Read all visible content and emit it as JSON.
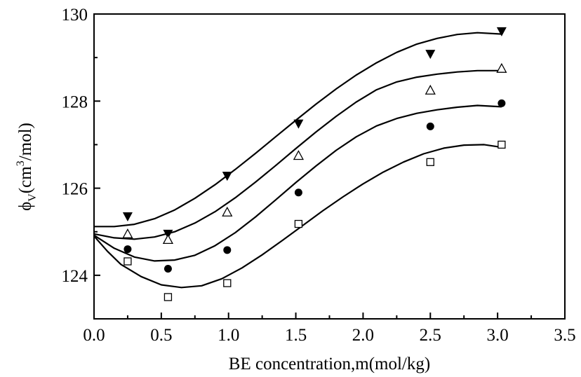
{
  "chart_data": {
    "type": "scatter",
    "xlabel": "BE concentration,m(mol/kg)",
    "ylabel": {
      "symbol": "ϕ",
      "subscript": "V",
      "unit_prefix": "(cm",
      "superscript": "3",
      "unit_suffix": "/mol)"
    },
    "xlim": [
      0.0,
      3.5
    ],
    "ylim": [
      123.0,
      130.0
    ],
    "xticks": [
      "0.0",
      "0.5",
      "1.0",
      "1.5",
      "2.0",
      "2.5",
      "3.0",
      "3.5"
    ],
    "yticks": [
      "124",
      "126",
      "128",
      "130"
    ],
    "grid": false,
    "legend": "none",
    "series": [
      {
        "marker": "filled-down-triangle",
        "color": "#000000",
        "points": [
          [
            0.25,
            125.35
          ],
          [
            0.55,
            124.95
          ],
          [
            0.99,
            126.28
          ],
          [
            1.52,
            127.48
          ],
          [
            2.5,
            129.08
          ],
          [
            3.03,
            129.6
          ]
        ],
        "fit": [
          [
            0.0,
            125.12
          ],
          [
            0.15,
            125.12
          ],
          [
            0.3,
            125.17
          ],
          [
            0.45,
            125.3
          ],
          [
            0.6,
            125.5
          ],
          [
            0.75,
            125.77
          ],
          [
            0.9,
            126.08
          ],
          [
            1.05,
            126.43
          ],
          [
            1.2,
            126.8
          ],
          [
            1.35,
            127.18
          ],
          [
            1.5,
            127.56
          ],
          [
            1.65,
            127.93
          ],
          [
            1.8,
            128.28
          ],
          [
            1.95,
            128.6
          ],
          [
            2.1,
            128.88
          ],
          [
            2.25,
            129.12
          ],
          [
            2.4,
            129.31
          ],
          [
            2.55,
            129.44
          ],
          [
            2.7,
            129.53
          ],
          [
            2.85,
            129.57
          ],
          [
            3.03,
            129.54
          ]
        ]
      },
      {
        "marker": "open-up-triangle",
        "color": "#000000",
        "points": [
          [
            0.25,
            124.95
          ],
          [
            0.55,
            124.82
          ],
          [
            0.99,
            125.45
          ],
          [
            1.52,
            126.75
          ],
          [
            2.5,
            128.25
          ],
          [
            3.03,
            128.75
          ]
        ],
        "fit": [
          [
            0.0,
            124.95
          ],
          [
            0.15,
            124.86
          ],
          [
            0.3,
            124.83
          ],
          [
            0.45,
            124.88
          ],
          [
            0.6,
            125.0
          ],
          [
            0.75,
            125.2
          ],
          [
            0.9,
            125.46
          ],
          [
            1.05,
            125.78
          ],
          [
            1.2,
            126.14
          ],
          [
            1.35,
            126.52
          ],
          [
            1.5,
            126.91
          ],
          [
            1.65,
            127.29
          ],
          [
            1.8,
            127.65
          ],
          [
            1.95,
            127.98
          ],
          [
            2.1,
            128.26
          ],
          [
            2.25,
            128.44
          ],
          [
            2.4,
            128.55
          ],
          [
            2.55,
            128.62
          ],
          [
            2.7,
            128.67
          ],
          [
            2.85,
            128.7
          ],
          [
            3.03,
            128.7
          ]
        ]
      },
      {
        "marker": "filled-circle",
        "color": "#000000",
        "points": [
          [
            0.25,
            124.6
          ],
          [
            0.55,
            124.15
          ],
          [
            0.99,
            124.58
          ],
          [
            1.52,
            125.9
          ],
          [
            2.5,
            127.42
          ],
          [
            3.03,
            127.95
          ]
        ],
        "fit": [
          [
            0.0,
            124.92
          ],
          [
            0.15,
            124.62
          ],
          [
            0.3,
            124.42
          ],
          [
            0.45,
            124.33
          ],
          [
            0.6,
            124.35
          ],
          [
            0.75,
            124.46
          ],
          [
            0.9,
            124.68
          ],
          [
            1.05,
            124.98
          ],
          [
            1.2,
            125.34
          ],
          [
            1.35,
            125.73
          ],
          [
            1.5,
            126.13
          ],
          [
            1.65,
            126.51
          ],
          [
            1.8,
            126.87
          ],
          [
            1.95,
            127.18
          ],
          [
            2.1,
            127.43
          ],
          [
            2.25,
            127.6
          ],
          [
            2.4,
            127.72
          ],
          [
            2.55,
            127.8
          ],
          [
            2.7,
            127.86
          ],
          [
            2.85,
            127.9
          ],
          [
            3.03,
            127.87
          ]
        ]
      },
      {
        "marker": "open-square",
        "color": "#000000",
        "points": [
          [
            0.25,
            124.32
          ],
          [
            0.55,
            123.5
          ],
          [
            0.99,
            123.82
          ],
          [
            1.52,
            125.18
          ],
          [
            2.5,
            126.6
          ],
          [
            3.03,
            127.0
          ]
        ],
        "fit": [
          [
            0.0,
            124.9
          ],
          [
            0.1,
            124.55
          ],
          [
            0.2,
            124.25
          ],
          [
            0.35,
            123.97
          ],
          [
            0.5,
            123.78
          ],
          [
            0.65,
            123.72
          ],
          [
            0.8,
            123.76
          ],
          [
            0.95,
            123.92
          ],
          [
            1.1,
            124.17
          ],
          [
            1.25,
            124.47
          ],
          [
            1.4,
            124.8
          ],
          [
            1.55,
            125.14
          ],
          [
            1.7,
            125.48
          ],
          [
            1.85,
            125.8
          ],
          [
            2.0,
            126.1
          ],
          [
            2.15,
            126.37
          ],
          [
            2.3,
            126.6
          ],
          [
            2.45,
            126.79
          ],
          [
            2.6,
            126.92
          ],
          [
            2.75,
            126.99
          ],
          [
            2.9,
            127.0
          ],
          [
            3.03,
            126.94
          ]
        ]
      }
    ]
  }
}
